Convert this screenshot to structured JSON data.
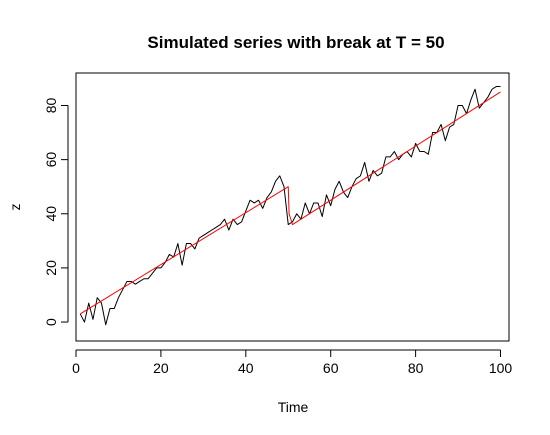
{
  "chart_data": {
    "type": "line",
    "title": "Simulated series with break at T = 50",
    "xlabel": "Time",
    "ylabel": "z",
    "xlim": [
      0,
      102
    ],
    "ylim": [
      -7,
      92
    ],
    "xticks": [
      0,
      20,
      40,
      60,
      80,
      100
    ],
    "yticks": [
      0,
      20,
      40,
      60,
      80
    ],
    "grid": false,
    "series": [
      {
        "style": "observed",
        "color": "#000000",
        "x": [
          1,
          2,
          3,
          4,
          5,
          6,
          7,
          8,
          9,
          10,
          11,
          12,
          13,
          14,
          15,
          16,
          17,
          18,
          19,
          20,
          21,
          22,
          23,
          24,
          25,
          26,
          27,
          28,
          29,
          30,
          31,
          32,
          33,
          34,
          35,
          36,
          37,
          38,
          39,
          40,
          41,
          42,
          43,
          44,
          45,
          46,
          47,
          48,
          49,
          50,
          51,
          52,
          53,
          54,
          55,
          56,
          57,
          58,
          59,
          60,
          61,
          62,
          63,
          64,
          65,
          66,
          67,
          68,
          69,
          70,
          71,
          72,
          73,
          74,
          75,
          76,
          77,
          78,
          79,
          80,
          81,
          82,
          83,
          84,
          85,
          86,
          87,
          88,
          89,
          90,
          91,
          92,
          93,
          94,
          95,
          96,
          97,
          98,
          99,
          100
        ],
        "y": [
          3,
          0,
          7,
          1,
          9,
          7,
          -1,
          5,
          5,
          9,
          12,
          15,
          15,
          14,
          15,
          16,
          16,
          18,
          20,
          20,
          22,
          25,
          24,
          29,
          21,
          29,
          29,
          27,
          31,
          32,
          33,
          34,
          35,
          36,
          38,
          34,
          38,
          36,
          37,
          41,
          45,
          44,
          45,
          42,
          46,
          48,
          52,
          54,
          50,
          36,
          37,
          40,
          38,
          44,
          40,
          44,
          44,
          39,
          47,
          43,
          49,
          52,
          48,
          46,
          50,
          53,
          54,
          59,
          52,
          56,
          54,
          55,
          61,
          61,
          63,
          60,
          62,
          63,
          61,
          66,
          63,
          63,
          62,
          70,
          70,
          73,
          67,
          72,
          73,
          80,
          80,
          77,
          82,
          86,
          79,
          81,
          83,
          86,
          87,
          87
        ]
      },
      {
        "style": "fitted",
        "color": "#ff0000",
        "x": [
          1,
          50,
          50.2,
          51,
          100
        ],
        "y": [
          3,
          50,
          40,
          36,
          85
        ]
      }
    ]
  }
}
